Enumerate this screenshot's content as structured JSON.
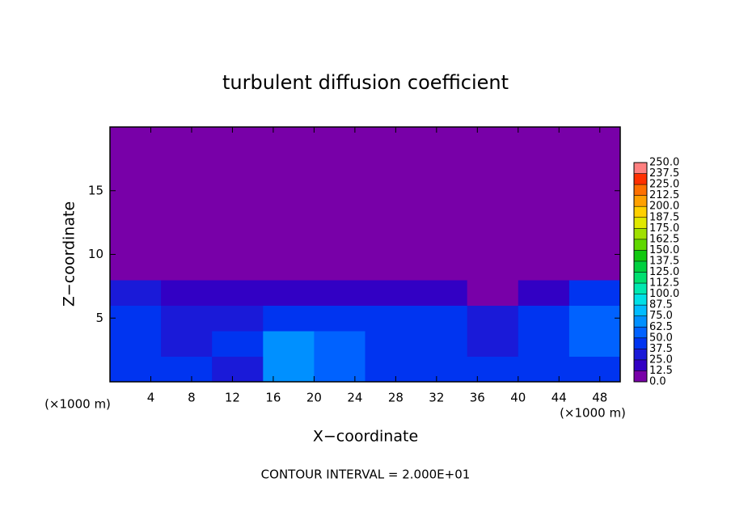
{
  "chart_data": {
    "type": "heatmap",
    "title": "turbulent diffusion coefficient",
    "xlabel": "X−coordinate",
    "ylabel": "Z−coordinate",
    "x_unit_label": "(×1000 m)",
    "y_unit_label": "(×1000 m)",
    "footer": "CONTOUR INTERVAL = 2.000E+01",
    "xlim": [
      0,
      50
    ],
    "ylim": [
      0,
      20
    ],
    "xticks": [
      4,
      8,
      12,
      16,
      20,
      24,
      28,
      32,
      36,
      40,
      44,
      48
    ],
    "yticks": [
      5,
      10,
      15
    ],
    "x_edges": [
      0,
      5,
      10,
      15,
      20,
      25,
      30,
      35,
      40,
      45,
      50
    ],
    "y_edges": [
      0,
      2,
      4,
      6,
      8,
      10,
      12,
      14,
      16,
      18,
      20
    ],
    "z": [
      [
        45,
        40,
        35,
        65,
        55,
        45,
        40,
        40,
        40,
        45
      ],
      [
        40,
        35,
        45,
        70,
        50,
        40,
        45,
        35,
        45,
        50
      ],
      [
        40,
        30,
        35,
        45,
        40,
        45,
        40,
        30,
        40,
        50
      ],
      [
        30,
        20,
        15,
        15,
        15,
        15,
        15,
        10,
        20,
        40
      ],
      [
        10,
        0,
        0,
        0,
        0,
        0,
        0,
        0,
        0,
        10
      ],
      [
        0,
        0,
        0,
        0,
        0,
        0,
        0,
        0,
        0,
        0
      ],
      [
        0,
        0,
        0,
        0,
        0,
        0,
        0,
        0,
        0,
        0
      ],
      [
        0,
        0,
        0,
        0,
        0,
        0,
        0,
        0,
        0,
        0
      ],
      [
        0,
        0,
        0,
        0,
        0,
        0,
        0,
        0,
        0,
        0
      ],
      [
        0,
        0,
        0,
        0,
        0,
        0,
        0,
        0,
        0,
        0
      ]
    ],
    "levels": [
      {
        "value": 0,
        "label": "0.0"
      },
      {
        "value": 12.5,
        "label": "12.5"
      },
      {
        "value": 25,
        "label": "25.0"
      },
      {
        "value": 37.5,
        "label": "37.5"
      },
      {
        "value": 50,
        "label": "50.0"
      },
      {
        "value": 62.5,
        "label": "62.5"
      },
      {
        "value": 75,
        "label": "75.0"
      },
      {
        "value": 87.5,
        "label": "87.5"
      },
      {
        "value": 100,
        "label": "100.0"
      },
      {
        "value": 112.5,
        "label": "112.5"
      },
      {
        "value": 125,
        "label": "125.0"
      },
      {
        "value": 137.5,
        "label": "137.5"
      },
      {
        "value": 150,
        "label": "150.0"
      },
      {
        "value": 162.5,
        "label": "162.5"
      },
      {
        "value": 175,
        "label": "175.0"
      },
      {
        "value": 187.5,
        "label": "187.5"
      },
      {
        "value": 200,
        "label": "200.0"
      },
      {
        "value": 212.5,
        "label": "212.5"
      },
      {
        "value": 225,
        "label": "225.0"
      },
      {
        "value": 237.5,
        "label": "237.5"
      },
      {
        "value": 250,
        "label": "250.0"
      }
    ],
    "colors": [
      "#7800a8",
      "#3200c4",
      "#1a1ad8",
      "#0034f0",
      "#0062ff",
      "#0090ff",
      "#00bcff",
      "#00e0e6",
      "#00e8b0",
      "#00e070",
      "#00d040",
      "#10c810",
      "#60d800",
      "#a0e000",
      "#e0e800",
      "#ffd000",
      "#ffa000",
      "#ff7000",
      "#ff3000",
      "#ff8080"
    ]
  }
}
